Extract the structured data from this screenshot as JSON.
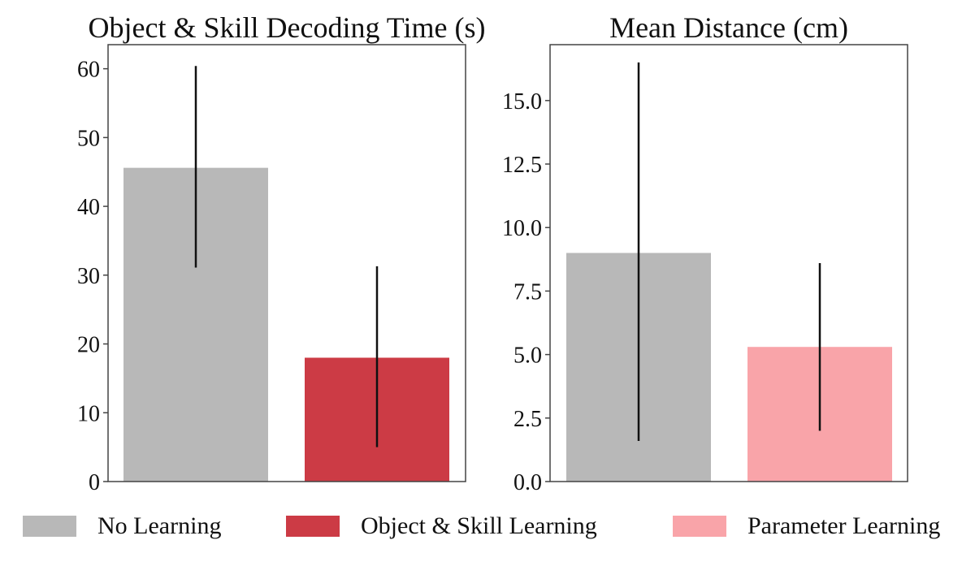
{
  "colors": {
    "no_learning": "#b8b8b8",
    "object_skill_learning": "#cc3b45",
    "parameter_learning": "#f9a4a9",
    "error_bar": "#111111",
    "axes": "#444444"
  },
  "legend": [
    {
      "label": "No Learning",
      "color": "#b8b8b8"
    },
    {
      "label": "Object & Skill Learning",
      "color": "#cc3b45"
    },
    {
      "label": "Parameter Learning",
      "color": "#f9a4a9"
    }
  ],
  "chart_data": [
    {
      "type": "bar",
      "title": "Object & Skill Decoding Time (s)",
      "xlabel": "",
      "ylabel": "",
      "ylim": [
        0,
        63.5
      ],
      "yticks": [
        0,
        10,
        20,
        30,
        40,
        50,
        60
      ],
      "ytick_labels": [
        "0",
        "10",
        "20",
        "30",
        "40",
        "50",
        "60"
      ],
      "grid": false,
      "bars": [
        {
          "series": "No Learning",
          "value": 45.6,
          "err_low": 31.1,
          "err_high": 60.4,
          "color": "#b8b8b8"
        },
        {
          "series": "Object & Skill Learning",
          "value": 18.0,
          "err_low": 5.0,
          "err_high": 31.3,
          "color": "#cc3b45"
        }
      ]
    },
    {
      "type": "bar",
      "title": "Mean Distance (cm)",
      "xlabel": "",
      "ylabel": "",
      "ylim": [
        0,
        17.2
      ],
      "yticks": [
        0,
        2.5,
        5,
        7.5,
        10,
        12.5,
        15
      ],
      "ytick_labels": [
        "0.0",
        "2.5",
        "5.0",
        "7.5",
        "10.0",
        "12.5",
        "15.0"
      ],
      "grid": false,
      "bars": [
        {
          "series": "No Learning",
          "value": 9.0,
          "err_low": 1.6,
          "err_high": 16.5,
          "color": "#b8b8b8"
        },
        {
          "series": "Parameter Learning",
          "value": 5.3,
          "err_low": 2.0,
          "err_high": 8.6,
          "color": "#f9a4a9"
        }
      ]
    }
  ]
}
